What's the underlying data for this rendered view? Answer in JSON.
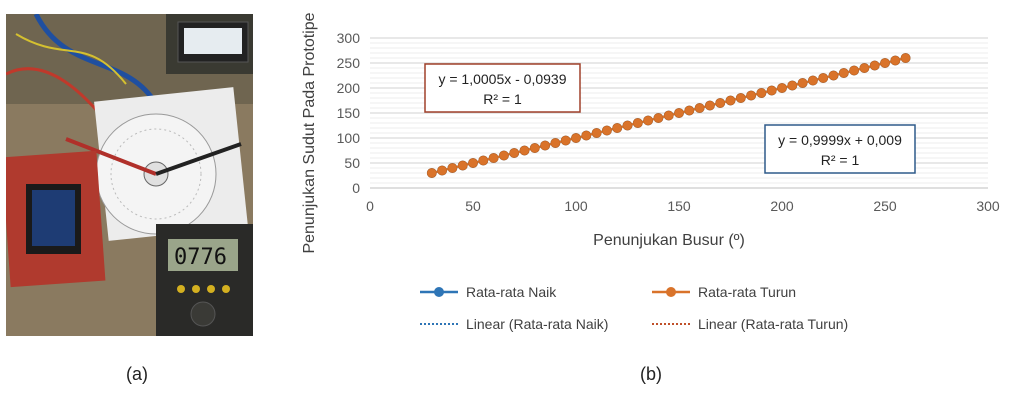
{
  "captions": {
    "left": "(a)",
    "right": "(b)"
  },
  "photo": {
    "description_icon": "multimeter-prototype-photo",
    "meter_reading": "0776"
  },
  "chart_data": {
    "type": "scatter",
    "xlabel": "Penunjukan Busur (º)",
    "ylabel": "Penunjukan Sudut Pada Prototipe",
    "xlim": [
      0,
      300
    ],
    "ylim": [
      0,
      300
    ],
    "xticks": [
      0,
      50,
      100,
      150,
      200,
      250,
      300
    ],
    "yticks": [
      0,
      50,
      100,
      150,
      200,
      250,
      300
    ],
    "grid": true,
    "legend_position": "bottom",
    "series": [
      {
        "name": "Rata-rata Naik",
        "color": "#2e75b6",
        "x": [
          30,
          35,
          40,
          45,
          50,
          55,
          60,
          65,
          70,
          75,
          80,
          85,
          90,
          95,
          100,
          105,
          110,
          115,
          120,
          125,
          130,
          135,
          140,
          145,
          150,
          155,
          160,
          165,
          170,
          175,
          180,
          185,
          190,
          195,
          200,
          205,
          210,
          215,
          220,
          225,
          230,
          235,
          240,
          245,
          250,
          255,
          260
        ],
        "y": [
          30,
          35,
          40,
          45,
          50,
          55,
          60,
          65,
          70,
          75,
          80,
          85,
          90,
          95,
          100,
          105,
          110,
          115,
          120,
          125,
          130,
          135,
          140,
          145,
          150,
          155,
          160,
          165,
          170,
          175,
          180,
          185,
          190,
          195,
          200,
          205,
          210,
          215,
          220,
          225,
          230,
          235,
          240,
          245,
          250,
          255,
          260
        ]
      },
      {
        "name": "Rata-rata Turun",
        "color": "#d9732a",
        "x": [
          30,
          35,
          40,
          45,
          50,
          55,
          60,
          65,
          70,
          75,
          80,
          85,
          90,
          95,
          100,
          105,
          110,
          115,
          120,
          125,
          130,
          135,
          140,
          145,
          150,
          155,
          160,
          165,
          170,
          175,
          180,
          185,
          190,
          195,
          200,
          205,
          210,
          215,
          220,
          225,
          230,
          235,
          240,
          245,
          250,
          255,
          260
        ],
        "y": [
          30,
          35,
          40,
          45,
          50,
          55,
          60,
          65,
          70,
          75,
          80,
          85,
          90,
          95,
          100,
          105,
          110,
          115,
          120,
          125,
          130,
          135,
          140,
          145,
          150,
          155,
          160,
          165,
          170,
          175,
          180,
          185,
          190,
          195,
          200,
          205,
          210,
          215,
          220,
          225,
          230,
          235,
          240,
          245,
          250,
          255,
          260
        ]
      }
    ],
    "trendlines": [
      {
        "name": "Linear (Rata-rata Naik)",
        "color": "#2e75b6",
        "slope": 0.9999,
        "intercept": 0.009
      },
      {
        "name": "Linear (Rata-rata Turun)",
        "color": "#c0502a",
        "slope": 1.0005,
        "intercept": -0.0939
      }
    ],
    "annotations": [
      {
        "line1": "y = 1,0005x - 0,0939",
        "line2": "R² = 1",
        "border": "#a0402a"
      },
      {
        "line1": "y = 0,9999x + 0,009",
        "line2": "R² = 1",
        "border": "#2e5a8a"
      }
    ]
  }
}
